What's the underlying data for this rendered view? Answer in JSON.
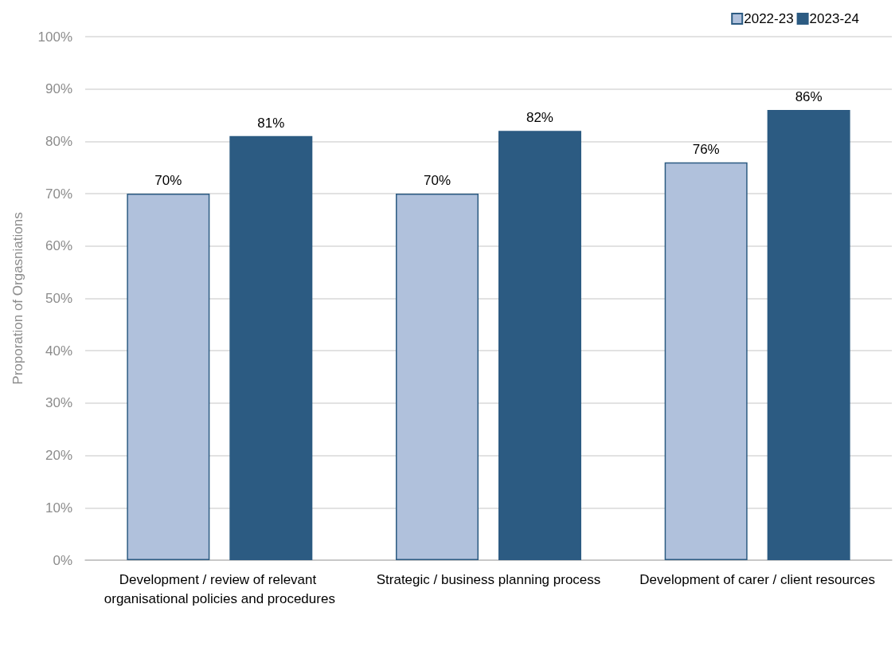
{
  "chart_data": {
    "type": "bar",
    "ylabel": "Proporation of Orgasniations",
    "categories": [
      "Development / review of relevant organisational policies and procedures",
      "Strategic / business planning process",
      "Development of carer / client resources"
    ],
    "series": [
      {
        "name": "2022-23",
        "color": "#b0c1dc",
        "values": [
          70,
          70,
          76
        ],
        "value_labels": [
          "70%",
          "70%",
          "76%"
        ]
      },
      {
        "name": "2023-24",
        "color": "#2c5b82",
        "values": [
          81,
          82,
          86
        ],
        "value_labels": [
          "81%",
          "82%",
          "86%"
        ]
      }
    ],
    "ylim": [
      0,
      100
    ],
    "yticks": [
      {
        "value": 0,
        "label": "0%"
      },
      {
        "value": 10,
        "label": "10%"
      },
      {
        "value": 20,
        "label": "20%"
      },
      {
        "value": 30,
        "label": "30%"
      },
      {
        "value": 40,
        "label": "40%"
      },
      {
        "value": 50,
        "label": "50%"
      },
      {
        "value": 60,
        "label": "60%"
      },
      {
        "value": 70,
        "label": "70%"
      },
      {
        "value": 80,
        "label": "80%"
      },
      {
        "value": 90,
        "label": "90%"
      },
      {
        "value": 100,
        "label": "100%"
      }
    ],
    "grid": "y",
    "legend": "top right"
  }
}
